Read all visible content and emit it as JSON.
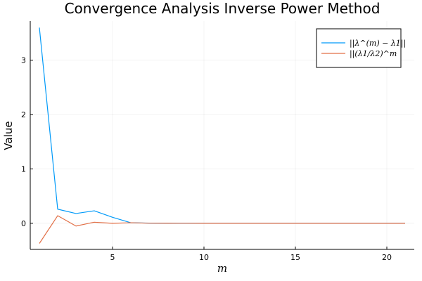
{
  "chart_data": {
    "type": "line",
    "title": "Convergence Analysis Inverse Power Method",
    "xlabel": "m",
    "ylabel": "Value",
    "xlim": [
      0.5,
      21.5
    ],
    "ylim": [
      -0.48,
      3.72
    ],
    "xticks": [
      5,
      10,
      15,
      20
    ],
    "yticks": [
      0,
      1,
      2,
      3
    ],
    "grid": true,
    "legend_position": "top-right",
    "x": [
      1,
      2,
      3,
      4,
      5,
      6,
      7,
      8,
      9,
      10,
      11,
      12,
      13,
      14,
      15,
      16,
      17,
      18,
      19,
      20,
      21
    ],
    "series": [
      {
        "name": "||λ^(m) − λ1||",
        "color": "#009af9",
        "values": [
          3.6,
          0.26,
          0.18,
          0.23,
          0.11,
          0.01,
          0.003,
          0.001,
          0.0005,
          0.0002,
          0.0001,
          0,
          0,
          0,
          0,
          0,
          0,
          0,
          0,
          0,
          0
        ]
      },
      {
        "name": "||(λ1/λ2)^m",
        "color": "#e26f46",
        "values": [
          -0.37,
          0.14,
          -0.05,
          0.02,
          0.0,
          0.01,
          0.002,
          0.001,
          0.0004,
          0.0002,
          0.0001,
          0,
          0,
          0,
          0,
          0,
          0,
          0,
          0,
          0,
          0
        ]
      }
    ]
  }
}
